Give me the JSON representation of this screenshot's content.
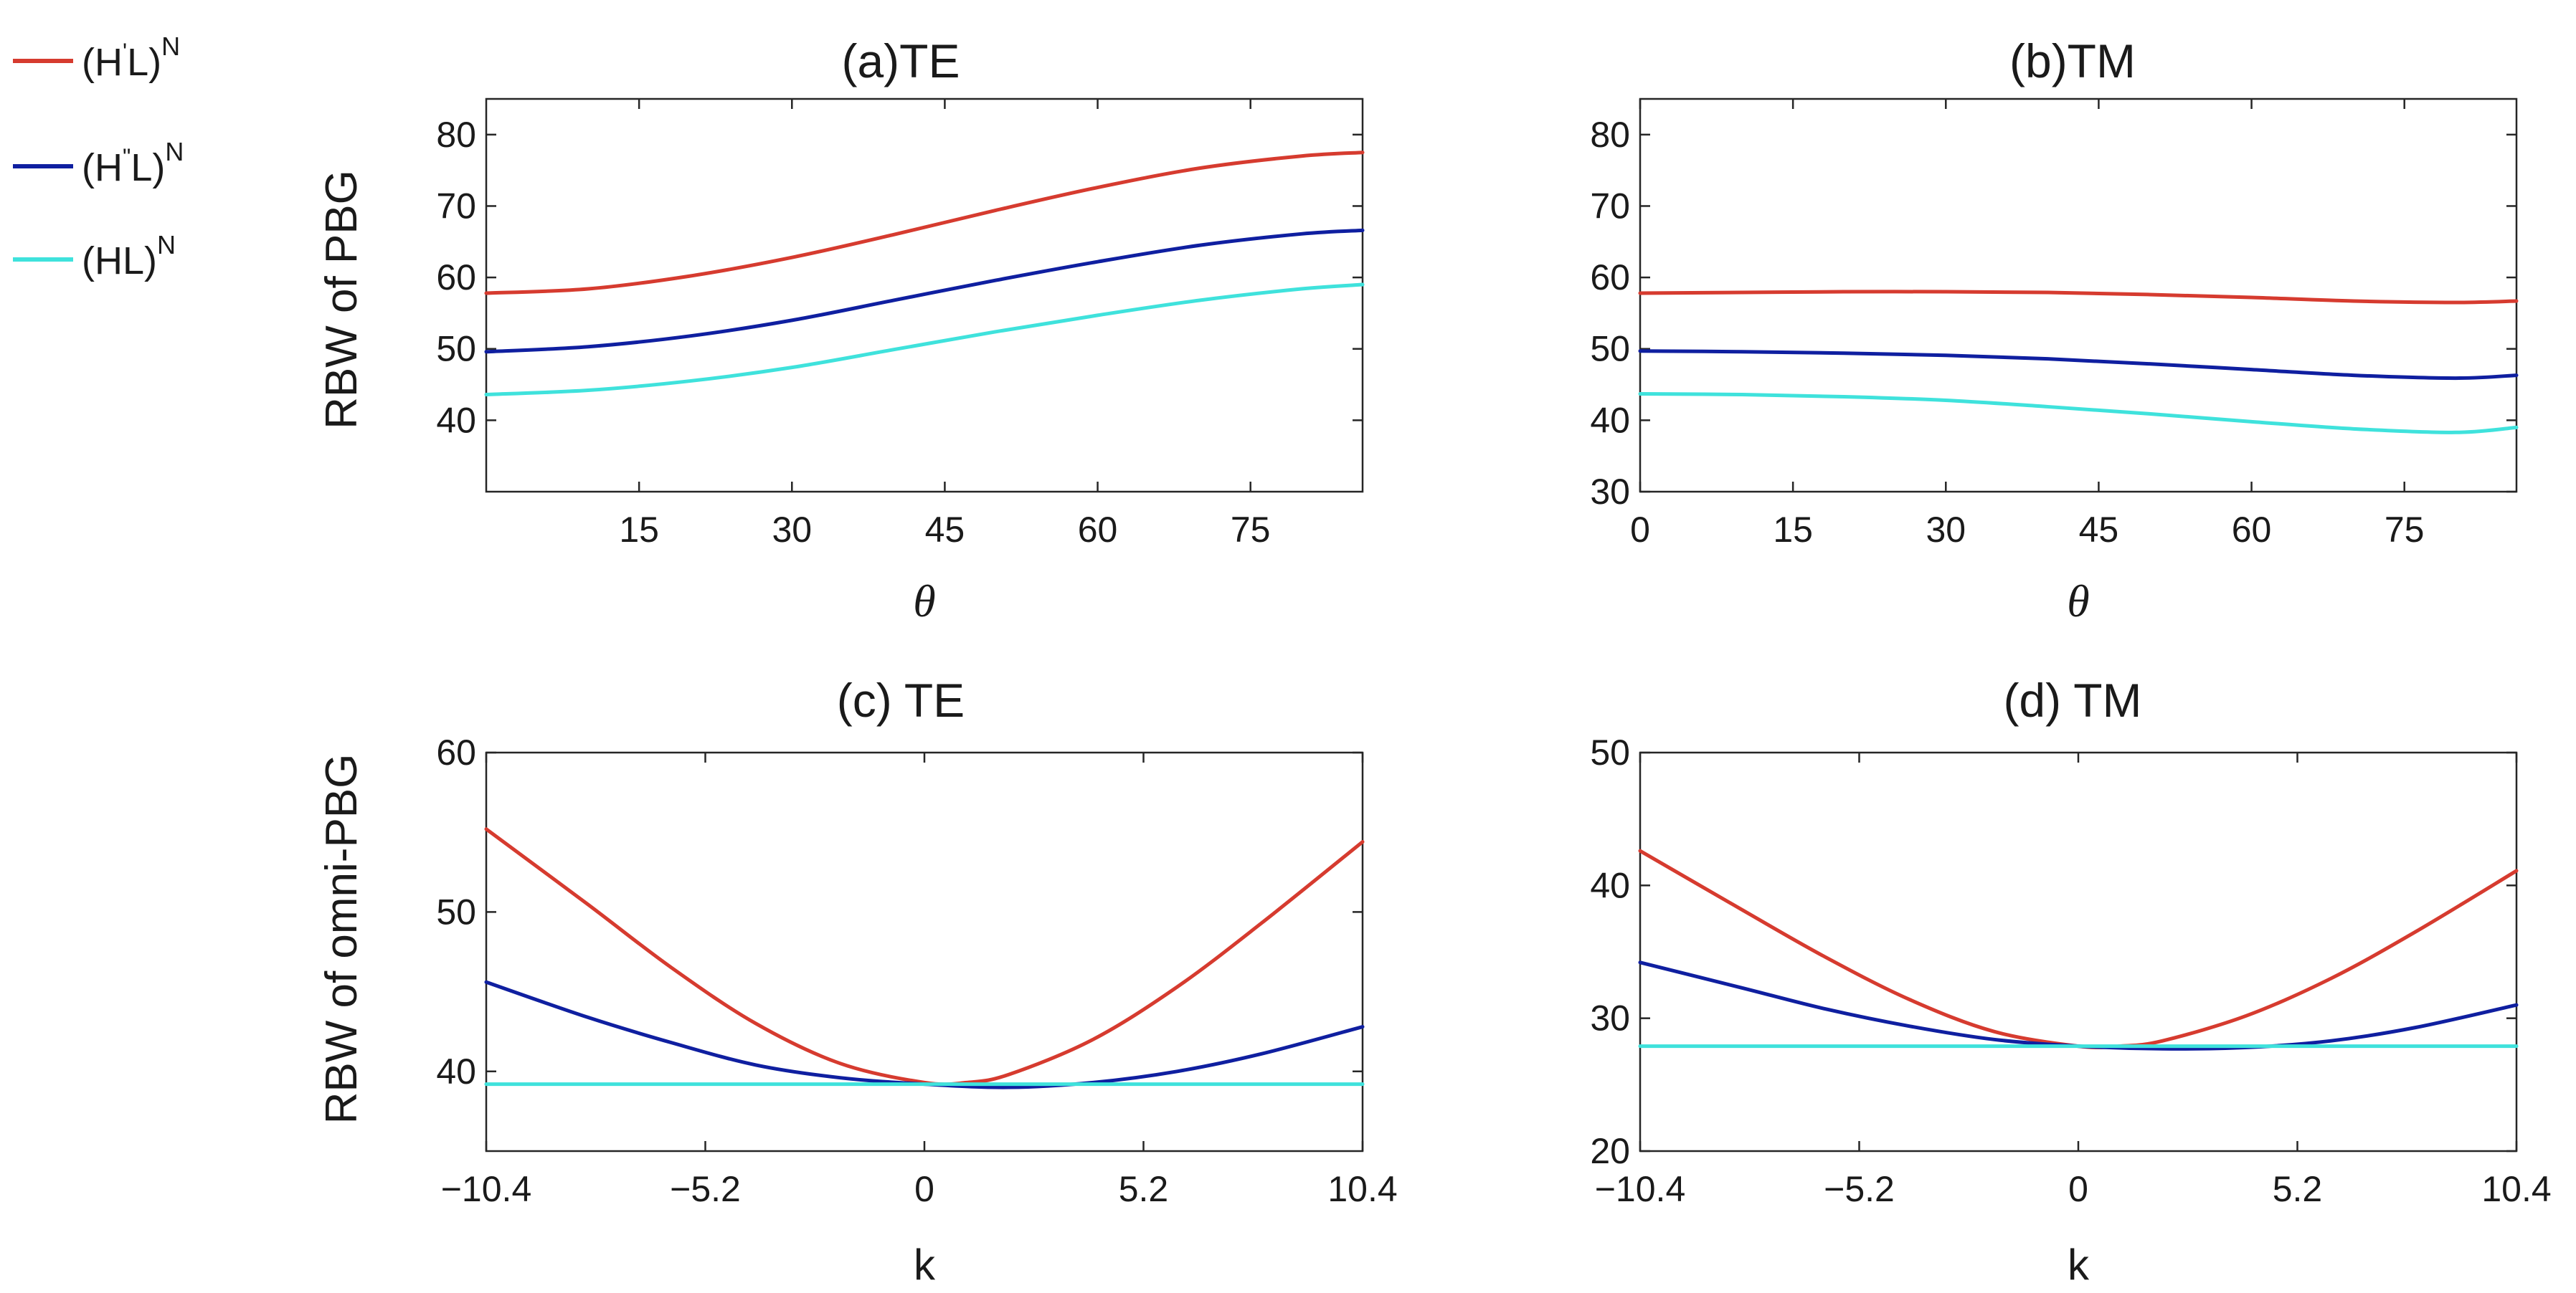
{
  "legend": {
    "entries": [
      {
        "base": "(H",
        "prime": "'",
        "rest": "L)",
        "sup": "N",
        "color": "#d63b2f"
      },
      {
        "base": "(H",
        "prime": "\"",
        "rest": "L)",
        "sup": "N",
        "color": "#0f1fa0"
      },
      {
        "base": "(HL)",
        "prime": "",
        "rest": "",
        "sup": "N",
        "color": "#3fe2dc"
      }
    ]
  },
  "shared_labels": {
    "ylabel_top": "RBW of PBG",
    "ylabel_bottom": "RBW of omni-PBG"
  },
  "chart_data": [
    {
      "id": "a",
      "type": "line",
      "title": "(a)TE",
      "xlabel": "θ",
      "ylabel": "RBW of PBG",
      "xlim": [
        0,
        86
      ],
      "ylim": [
        30,
        85
      ],
      "xticks": [
        15,
        30,
        45,
        60,
        75
      ],
      "yticks": [
        40,
        50,
        60,
        70,
        80
      ],
      "series": [
        {
          "name": "(H'L)^N",
          "color": "#d63b2f",
          "x": [
            0,
            10,
            20,
            30,
            40,
            50,
            60,
            70,
            80,
            86
          ],
          "y": [
            57.8,
            58.4,
            60.2,
            62.8,
            66.0,
            69.4,
            72.6,
            75.3,
            77.0,
            77.5
          ]
        },
        {
          "name": "(H''L)^N",
          "color": "#0f1fa0",
          "x": [
            0,
            10,
            20,
            30,
            40,
            50,
            60,
            70,
            80,
            86
          ],
          "y": [
            49.6,
            50.3,
            51.8,
            54.0,
            56.8,
            59.6,
            62.2,
            64.5,
            66.1,
            66.6
          ]
        },
        {
          "name": "(HL)^N",
          "color": "#3fe2dc",
          "x": [
            0,
            10,
            20,
            30,
            40,
            50,
            60,
            70,
            80,
            86
          ],
          "y": [
            43.6,
            44.2,
            45.5,
            47.4,
            49.9,
            52.4,
            54.7,
            56.8,
            58.4,
            59.0
          ]
        }
      ]
    },
    {
      "id": "b",
      "type": "line",
      "title": "(b)TM",
      "xlabel": "θ",
      "ylabel": "",
      "xlim": [
        0,
        86
      ],
      "ylim": [
        30,
        85
      ],
      "xticks": [
        0,
        15,
        30,
        45,
        60,
        75
      ],
      "yticks": [
        30,
        40,
        50,
        60,
        70,
        80
      ],
      "series": [
        {
          "name": "(H'L)^N",
          "color": "#d63b2f",
          "x": [
            0,
            10,
            20,
            30,
            40,
            50,
            60,
            70,
            80,
            86
          ],
          "y": [
            57.8,
            57.9,
            58.0,
            58.0,
            57.9,
            57.6,
            57.2,
            56.7,
            56.5,
            56.7
          ]
        },
        {
          "name": "(H''L)^N",
          "color": "#0f1fa0",
          "x": [
            0,
            10,
            20,
            30,
            40,
            50,
            60,
            70,
            80,
            86
          ],
          "y": [
            49.7,
            49.6,
            49.4,
            49.1,
            48.6,
            47.9,
            47.1,
            46.3,
            45.9,
            46.3
          ]
        },
        {
          "name": "(HL)^N",
          "color": "#3fe2dc",
          "x": [
            0,
            10,
            20,
            30,
            40,
            50,
            60,
            70,
            80,
            86
          ],
          "y": [
            43.7,
            43.6,
            43.3,
            42.8,
            41.9,
            40.9,
            39.8,
            38.8,
            38.3,
            39.0
          ]
        }
      ]
    },
    {
      "id": "c",
      "type": "line",
      "title": "(c) TE",
      "xlabel": "k",
      "ylabel": "RBW of omni-PBG",
      "xlim": [
        -10.4,
        10.4
      ],
      "ylim": [
        35,
        60
      ],
      "xticks": [
        -10.4,
        -5.2,
        0,
        5.2,
        10.4
      ],
      "xticklabels": [
        "−10.4",
        "−5.2",
        "0",
        "5.2",
        "10.4"
      ],
      "yticks": [
        40,
        50,
        60
      ],
      "series": [
        {
          "name": "(H'L)^N",
          "color": "#d63b2f",
          "x": [
            -10.4,
            -8,
            -6,
            -4,
            -2,
            0,
            1,
            2,
            4,
            6,
            8,
            10.4
          ],
          "y": [
            55.2,
            50.5,
            46.5,
            43.0,
            40.5,
            39.3,
            39.3,
            39.8,
            42.0,
            45.3,
            49.3,
            54.4
          ]
        },
        {
          "name": "(H''L)^N",
          "color": "#0f1fa0",
          "x": [
            -10.4,
            -8,
            -6,
            -4,
            -2,
            0,
            2,
            4,
            6,
            8,
            10.4
          ],
          "y": [
            45.6,
            43.4,
            41.8,
            40.4,
            39.6,
            39.2,
            39.0,
            39.3,
            40.0,
            41.1,
            42.8
          ]
        },
        {
          "name": "(HL)^N",
          "color": "#3fe2dc",
          "x": [
            -10.4,
            10.4
          ],
          "y": [
            39.2,
            39.2
          ]
        }
      ]
    },
    {
      "id": "d",
      "type": "line",
      "title": "(d) TM",
      "xlabel": "k",
      "ylabel": "",
      "xlim": [
        -10.4,
        10.4
      ],
      "ylim": [
        20,
        50
      ],
      "xticks": [
        -10.4,
        -5.2,
        0,
        5.2,
        10.4
      ],
      "xticklabels": [
        "−10.4",
        "−5.2",
        "0",
        "5.2",
        "10.4"
      ],
      "yticks": [
        20,
        30,
        40,
        50
      ],
      "series": [
        {
          "name": "(H'L)^N",
          "color": "#d63b2f",
          "x": [
            -10.4,
            -8,
            -6,
            -4,
            -2,
            0,
            1,
            2,
            4,
            6,
            8,
            10.4
          ],
          "y": [
            42.6,
            38.2,
            34.6,
            31.4,
            29.0,
            27.9,
            27.9,
            28.3,
            30.2,
            33.0,
            36.5,
            41.1
          ]
        },
        {
          "name": "(H''L)^N",
          "color": "#0f1fa0",
          "x": [
            -10.4,
            -8,
            -6,
            -4,
            -2,
            0,
            2,
            4,
            6,
            8,
            10.4
          ],
          "y": [
            34.2,
            32.3,
            30.7,
            29.4,
            28.4,
            27.9,
            27.7,
            27.8,
            28.3,
            29.3,
            31.0
          ]
        },
        {
          "name": "(HL)^N",
          "color": "#3fe2dc",
          "x": [
            -10.4,
            10.4
          ],
          "y": [
            27.9,
            27.9
          ]
        }
      ]
    }
  ]
}
